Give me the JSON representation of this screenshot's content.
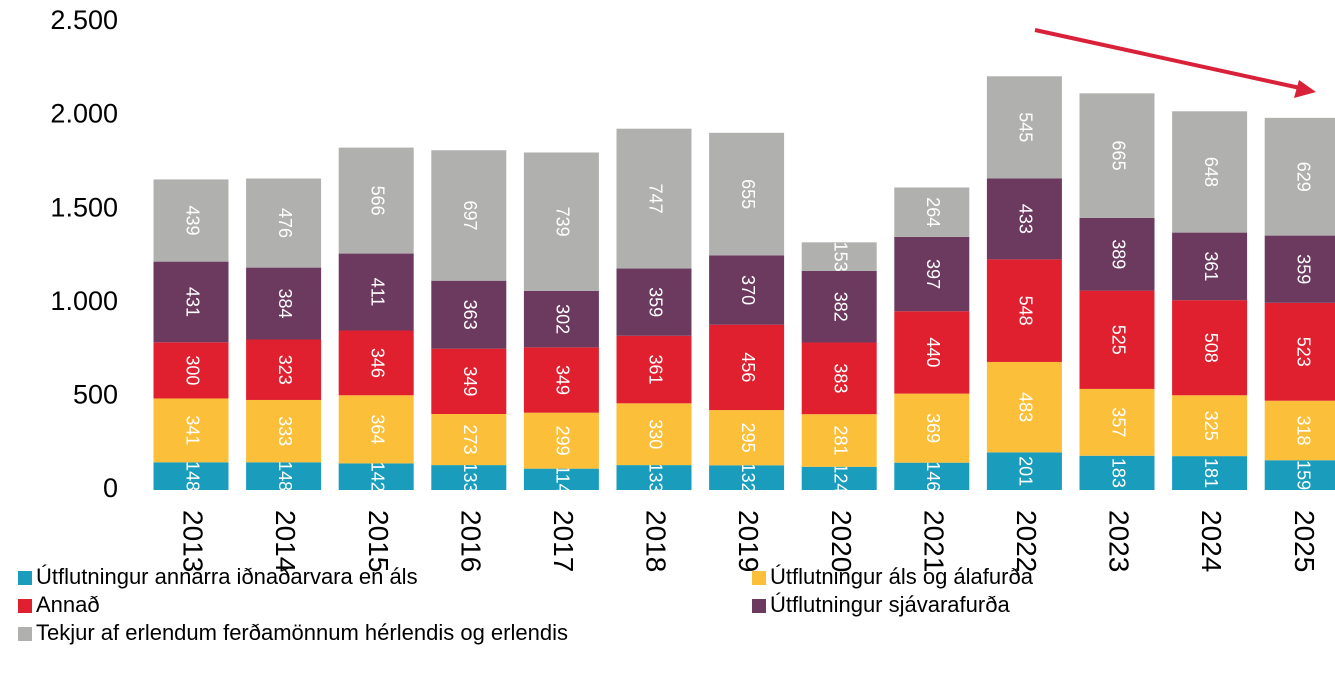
{
  "chart_data": {
    "type": "stacked_bar",
    "categories": [
      "2013",
      "2014",
      "2015",
      "2016",
      "2017",
      "2018",
      "2019",
      "2020",
      "2021",
      "2022",
      "2023",
      "2024",
      "2025"
    ],
    "series": [
      {
        "name": "Útflutningur annarra iðnaðarvara en áls",
        "color": "#1a9dbd",
        "values": [
          148,
          148,
          142,
          133,
          114,
          133,
          132,
          124,
          146,
          201,
          183,
          181,
          159
        ]
      },
      {
        "name": "Útflutningur áls og álafurða",
        "color": "#fbbf3a",
        "values": [
          341,
          333,
          364,
          273,
          299,
          330,
          295,
          281,
          369,
          483,
          357,
          325,
          318
        ]
      },
      {
        "name": "Annað",
        "color": "#e0202f",
        "values": [
          300,
          323,
          346,
          349,
          349,
          361,
          456,
          383,
          440,
          548,
          525,
          508,
          523
        ]
      },
      {
        "name": "Útflutningur sjávarafurða",
        "color": "#6b3a5e",
        "values": [
          431,
          384,
          411,
          363,
          302,
          359,
          370,
          382,
          397,
          433,
          389,
          361,
          359
        ]
      },
      {
        "name": "Tekjur af erlendum ferðamönnum hérlendis og erlendis",
        "color": "#b0b0af",
        "values": [
          439,
          476,
          566,
          697,
          739,
          747,
          655,
          153,
          264,
          545,
          665,
          648,
          629
        ]
      }
    ],
    "ylim": [
      0,
      2500
    ],
    "yticks": [
      0,
      500,
      {
        "value": 1000,
        "label": "1.000"
      },
      {
        "value": 1500,
        "label": "1.500"
      },
      {
        "value": 2000,
        "label": "2.000"
      },
      {
        "value": 2500,
        "label": "2.500"
      }
    ]
  }
}
